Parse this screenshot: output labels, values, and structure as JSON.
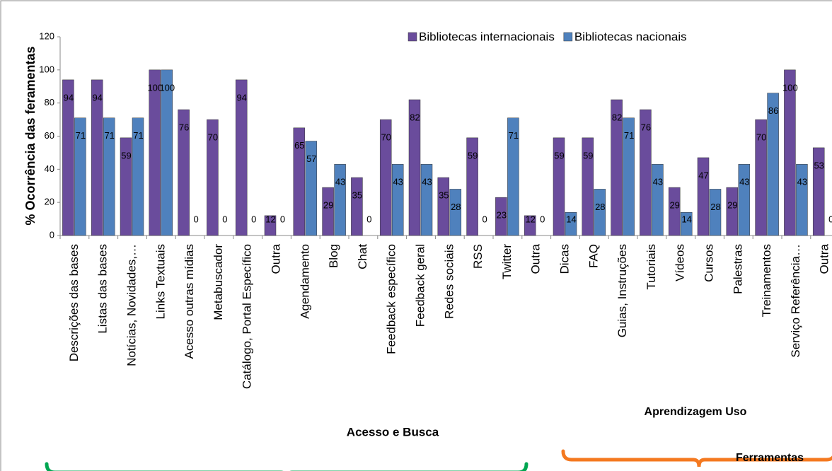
{
  "chart_data": {
    "type": "bar",
    "y_label": "% Ocorrência das feramentas",
    "categories": [
      "Descrições das bases",
      "Listas das bases",
      "Notícias, Novidades,…",
      "Links Textuais",
      "Acesso outras mídias",
      "Metabuscador",
      "Catálogo, Portal Específico",
      "Outra",
      "Agendamento",
      "Blog",
      "Chat",
      "Feedback  específico",
      "Feedback geral",
      "Redes sociais",
      "RSS",
      "Twitter",
      "Outra",
      "Dicas",
      "FAQ",
      "Guias, Instruções",
      "Tutoriais",
      "Vídeos",
      "Cursos",
      "Palestras",
      "Treinamentos",
      "Serviço Referência…",
      "Outra"
    ],
    "series": [
      {
        "name": "Bibliotecas internacionais",
        "color": "#6a4c9c",
        "values": [
          94,
          94,
          59,
          100,
          76,
          70,
          94,
          12,
          65,
          29,
          35,
          70,
          82,
          35,
          59,
          23,
          12,
          59,
          59,
          82,
          76,
          29,
          47,
          29,
          70,
          100,
          53
        ]
      },
      {
        "name": "Bibliotecas nacionais",
        "color": "#4f81bd",
        "values": [
          71,
          71,
          71,
          100,
          0,
          0,
          0,
          0,
          57,
          43,
          0,
          43,
          43,
          28,
          0,
          71,
          0,
          14,
          28,
          71,
          43,
          14,
          28,
          43,
          86,
          43,
          0
        ]
      }
    ],
    "ylim": [
      0,
      120
    ],
    "yticks": [
      0,
      20,
      40,
      60,
      80,
      100,
      120
    ],
    "annotations": [
      {
        "text": "Acesso e Busca",
        "color": "#00a651"
      },
      {
        "text": "Aprendizagem Uso",
        "color": "#f47920"
      },
      {
        "text": "Ferramentas",
        "color": "#000000"
      }
    ]
  }
}
